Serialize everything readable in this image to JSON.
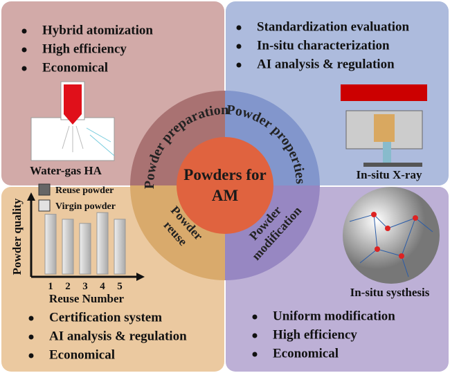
{
  "quadrants": [
    {
      "bullets": [
        "Hybrid atomization",
        "High efficiency",
        "Economical"
      ],
      "image_label": "Water-gas HA"
    },
    {
      "bullets": [
        "Standardization evaluation",
        "In-situ characterization",
        "AI analysis & regulation"
      ],
      "image_label": "In-situ X-ray"
    },
    {
      "bullets": [
        "Certification system",
        "AI analysis & regulation",
        "Economical"
      ]
    },
    {
      "bullets": [
        "Uniform modification",
        "High efficiency",
        "Economical"
      ],
      "image_label": "In-situ systhesis"
    }
  ],
  "center": {
    "lines": [
      "Powders for",
      "AM"
    ]
  },
  "ring_labels": [
    [
      "Powder preparation"
    ],
    [
      "Powder properties"
    ],
    [
      "Powder",
      "reuse"
    ],
    [
      "Powder",
      "modification"
    ]
  ],
  "reuse_chart": {
    "y_label": "Powder quality",
    "x_label": "Reuse Number",
    "legend": [
      "Reuse powder",
      "Virgin powder"
    ],
    "categories": [
      "1",
      "2",
      "3",
      "4",
      "5"
    ],
    "values": [
      72,
      66,
      61,
      74,
      66
    ],
    "ylim": [
      0,
      100
    ]
  }
}
